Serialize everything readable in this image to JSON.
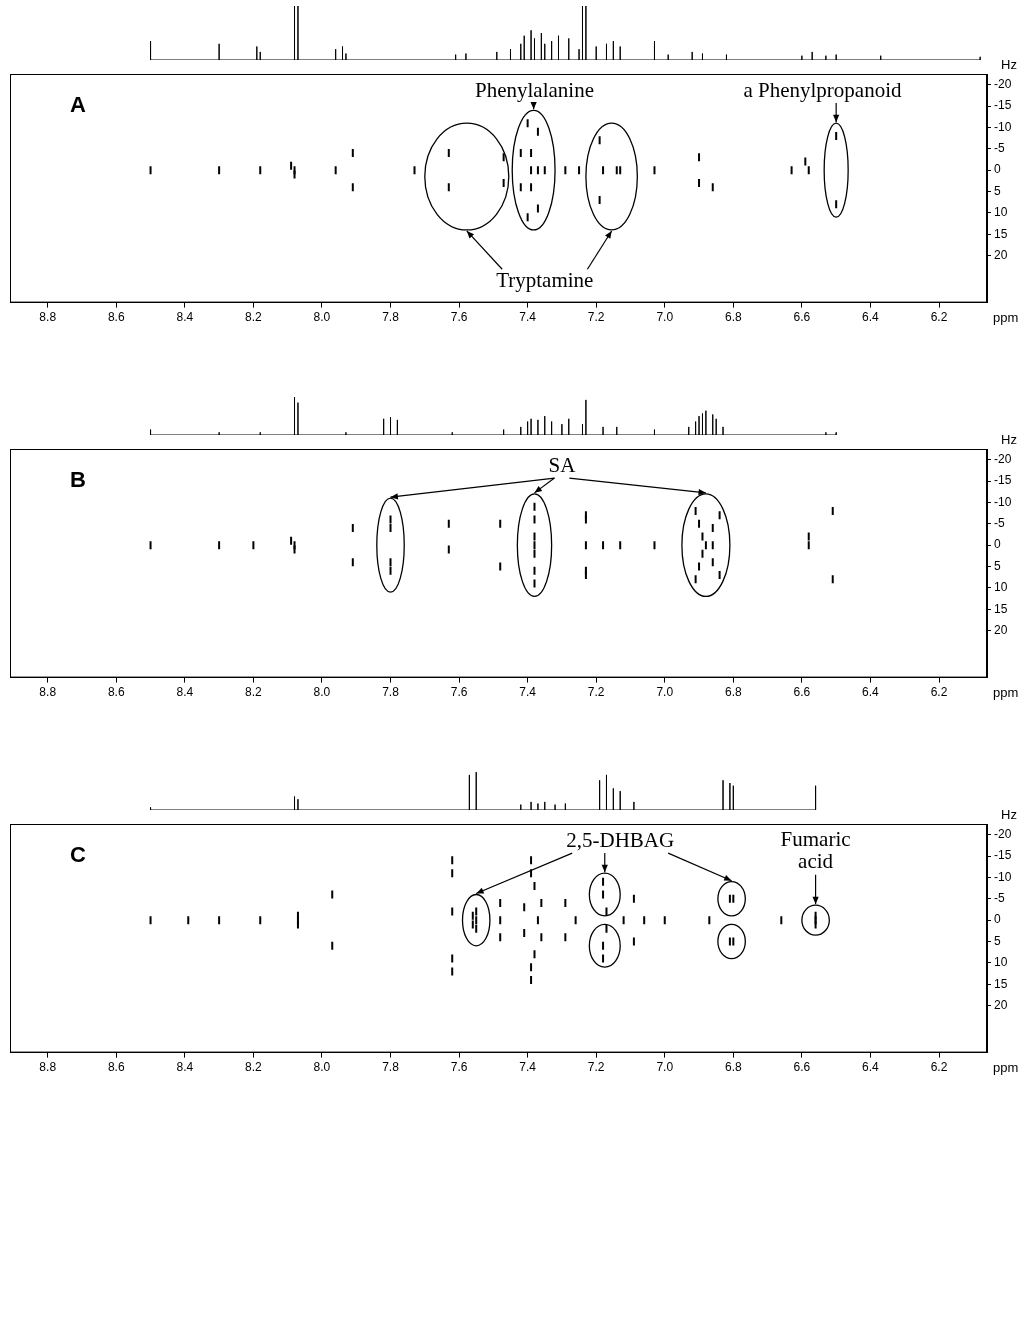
{
  "chart_data": [
    {
      "type": "scatter",
      "title": "A",
      "x_label": "ppm",
      "y_label": "Hz",
      "xlim": [
        8.91,
        6.06
      ],
      "xticks": [
        8.8,
        8.6,
        8.4,
        8.2,
        {
          "value": 8,
          "label": "8.0"
        },
        7.8,
        7.6,
        7.4,
        7.2,
        {
          "value": 7,
          "label": "7.0"
        },
        6.8,
        6.6,
        6.4,
        6.2
      ],
      "ylim": [
        31,
        -22.5
      ],
      "yticks": [
        -20,
        -15,
        -10,
        -5,
        0,
        5,
        10,
        15,
        20
      ],
      "grid": false,
      "series": [
        {
          "type": "scatter",
          "marker": "dash",
          "color": "#000000",
          "x": [
            8.5,
            8.3,
            8.18,
            8.09,
            8.08,
            8.08,
            7.96,
            7.91,
            7.91,
            7.73,
            7.63,
            7.63,
            7.47,
            7.47,
            7.4,
            7.37,
            7.42,
            7.39,
            7.39,
            7.37,
            7.35,
            7.42,
            7.39,
            7.37,
            7.4,
            7.29,
            7.25,
            7.19,
            7.18,
            7.14,
            7.13,
            7.19,
            7.03,
            6.9,
            6.9,
            6.86,
            6.63,
            6.58,
            6.59,
            6.5,
            6.5
          ],
          "values": [
            0,
            0,
            0,
            -1,
            0,
            1,
            0,
            -4,
            4,
            0,
            -4,
            4,
            -3,
            3,
            -11,
            -9,
            -4,
            -4,
            0,
            0,
            0,
            4,
            4,
            9,
            11,
            0,
            0,
            -7,
            0,
            0,
            0,
            7,
            0,
            -3,
            3,
            4,
            0,
            0,
            -2,
            -8,
            8
          ]
        }
      ],
      "projection": {
        "type": "line",
        "color": "#000000",
        "tick_labels": false,
        "ylim": [
          0,
          100
        ],
        "x": [
          8.5,
          8.3,
          8.19,
          8.18,
          8.08,
          8.07,
          7.96,
          7.94,
          7.93,
          7.61,
          7.58,
          7.49,
          7.45,
          7.42,
          7.41,
          7.39,
          7.38,
          7.36,
          7.35,
          7.33,
          7.31,
          7.28,
          7.25,
          7.24,
          7.23,
          7.2,
          7.17,
          7.15,
          7.13,
          7.03,
          6.99,
          6.92,
          6.89,
          6.82,
          6.6,
          6.57,
          6.53,
          6.5,
          6.37,
          6.08
        ],
        "values": [
          35,
          30,
          25,
          15,
          100,
          100,
          20,
          25,
          12,
          10,
          12,
          15,
          20,
          30,
          45,
          55,
          40,
          50,
          30,
          35,
          45,
          40,
          20,
          100,
          100,
          25,
          30,
          35,
          25,
          35,
          10,
          15,
          12,
          10,
          8,
          15,
          8,
          10,
          8,
          6
        ]
      },
      "annotations": [
        {
          "text": "Phenylalanine",
          "x": 7.38,
          "y": -18.5,
          "targets": [
            {
              "x": [
                7.445,
                7.32
              ],
              "y": [
                -14,
                14
              ]
            }
          ]
        },
        {
          "text": "a Phenylpropanoid",
          "x": 6.54,
          "y": -18.5,
          "targets": [
            {
              "x": [
                6.535,
                6.465
              ],
              "y": [
                -11,
                11
              ]
            }
          ]
        },
        {
          "text": "Tryptamine",
          "x": 7.35,
          "y": 26,
          "targets": [
            {
              "x": [
                7.7,
                7.455
              ],
              "y": [
                -11,
                14
              ]
            },
            {
              "x": [
                7.23,
                7.08
              ],
              "y": [
                -11,
                14
              ]
            }
          ]
        }
      ]
    },
    {
      "type": "scatter",
      "title": "B",
      "x_label": "ppm",
      "y_label": "Hz",
      "xlim": [
        8.91,
        6.06
      ],
      "xticks": [
        8.8,
        8.6,
        8.4,
        8.2,
        {
          "value": 8,
          "label": "8.0"
        },
        7.8,
        7.6,
        7.4,
        7.2,
        {
          "value": 7,
          "label": "7.0"
        },
        6.8,
        6.6,
        6.4,
        6.2
      ],
      "ylim": [
        31,
        -22.5
      ],
      "yticks": [
        -20,
        -15,
        -10,
        -5,
        0,
        5,
        10,
        15,
        20
      ],
      "grid": false,
      "series": [
        {
          "type": "scatter",
          "marker": "dash",
          "color": "#000000",
          "x": [
            8.5,
            8.3,
            8.2,
            8.09,
            8.08,
            8.08,
            7.91,
            7.91,
            7.8,
            7.8,
            7.8,
            7.8,
            7.63,
            7.63,
            7.48,
            7.48,
            7.38,
            7.38,
            7.38,
            7.38,
            7.38,
            7.38,
            7.38,
            7.23,
            7.23,
            7.23,
            7.23,
            7.23,
            7.18,
            7.13,
            7.03,
            6.91,
            6.9,
            6.89,
            6.88,
            6.89,
            6.9,
            6.91,
            6.86,
            6.86,
            6.86,
            6.84,
            6.84,
            6.58,
            6.58,
            6.51,
            6.51
          ],
          "values": [
            0,
            0,
            0,
            -1,
            0,
            1,
            -4,
            4,
            -6,
            -4,
            4,
            6,
            -5,
            1,
            -5,
            5,
            -9,
            -6,
            -2,
            0,
            2,
            6,
            9,
            -7,
            -6,
            0,
            6,
            7,
            0,
            0,
            0,
            -8,
            -5,
            -2,
            0,
            2,
            5,
            8,
            -4,
            0,
            4,
            -7,
            7,
            0,
            -2,
            -8,
            8
          ]
        }
      ],
      "projection": {
        "type": "line",
        "color": "#000000",
        "tick_labels": false,
        "ylim": [
          0,
          100
        ],
        "x": [
          8.5,
          8.3,
          8.18,
          8.08,
          8.07,
          7.93,
          7.82,
          7.8,
          7.78,
          7.62,
          7.47,
          7.42,
          7.4,
          7.39,
          7.37,
          7.35,
          7.33,
          7.3,
          7.28,
          7.24,
          7.23,
          7.18,
          7.14,
          7.03,
          6.93,
          6.91,
          6.9,
          6.89,
          6.88,
          6.86,
          6.85,
          6.83,
          6.53,
          6.5
        ],
        "values": [
          10,
          5,
          5,
          70,
          60,
          5,
          30,
          33,
          28,
          5,
          10,
          15,
          25,
          30,
          28,
          35,
          25,
          20,
          30,
          20,
          65,
          15,
          15,
          10,
          15,
          25,
          35,
          40,
          45,
          38,
          30,
          15,
          5,
          5
        ]
      },
      "annotations": [
        {
          "text": "SA",
          "x": 7.3,
          "y": -18.5,
          "targets": [
            {
              "x": [
                7.84,
                7.76
              ],
              "y": [
                -11,
                11
              ]
            },
            {
              "x": [
                7.43,
                7.33
              ],
              "y": [
                -12,
                12
              ]
            },
            {
              "x": [
                6.95,
                6.81
              ],
              "y": [
                -12,
                12
              ]
            }
          ]
        }
      ]
    },
    {
      "type": "scatter",
      "title": "C",
      "x_label": "ppm",
      "y_label": "Hz",
      "xlim": [
        8.91,
        6.06
      ],
      "xticks": [
        8.8,
        8.6,
        8.4,
        8.2,
        {
          "value": 8,
          "label": "8.0"
        },
        7.8,
        7.6,
        7.4,
        7.2,
        {
          "value": 7,
          "label": "7.0"
        },
        6.8,
        6.6,
        6.4,
        6.2
      ],
      "ylim": [
        31,
        -22.5
      ],
      "yticks": [
        -20,
        -15,
        -10,
        -5,
        0,
        5,
        10,
        15,
        20
      ],
      "grid": false,
      "series": [
        {
          "type": "scatter",
          "marker": "dash",
          "color": "#000000",
          "x": [
            8.5,
            8.39,
            8.3,
            8.18,
            8.07,
            8.07,
            8.07,
            7.97,
            7.97,
            7.62,
            7.62,
            7.62,
            7.62,
            7.62,
            7.55,
            7.55,
            7.55,
            7.56,
            7.56,
            7.48,
            7.48,
            7.48,
            7.39,
            7.39,
            7.38,
            7.36,
            7.37,
            7.36,
            7.38,
            7.39,
            7.39,
            7.41,
            7.41,
            7.29,
            7.29,
            7.26,
            7.18,
            7.18,
            7.18,
            7.18,
            7.17,
            7.17,
            7.12,
            7.09,
            7.09,
            7.06,
            7.0,
            6.87,
            6.81,
            6.8,
            6.81,
            6.8,
            6.66,
            6.56,
            6.56,
            6.56
          ],
          "values": [
            0,
            0,
            0,
            0,
            -1,
            0,
            1,
            -6,
            6,
            -14,
            -11,
            -2,
            9,
            12,
            -2,
            0,
            2,
            -1,
            1,
            -4,
            4,
            0,
            -14,
            -11,
            -8,
            -4,
            0,
            4,
            8,
            11,
            14,
            -3,
            3,
            -4,
            4,
            0,
            -9,
            -6,
            6,
            9,
            -2,
            2,
            0,
            -5,
            5,
            0,
            0,
            0,
            -5,
            -5,
            5,
            5,
            0,
            0,
            -1,
            1
          ]
        }
      ],
      "projection": {
        "type": "line",
        "color": "#000000",
        "tick_labels": false,
        "ylim": [
          0,
          100
        ],
        "x": [
          8.5,
          8.08,
          8.07,
          7.57,
          7.55,
          7.42,
          7.39,
          7.37,
          7.35,
          7.32,
          7.29,
          7.19,
          7.17,
          7.15,
          7.13,
          7.09,
          6.83,
          6.81,
          6.8,
          6.56
        ],
        "values": [
          5,
          25,
          20,
          65,
          70,
          10,
          15,
          12,
          15,
          10,
          12,
          55,
          65,
          40,
          35,
          15,
          55,
          50,
          45,
          45
        ]
      },
      "annotations": [
        {
          "text": "2,5-DHBAG",
          "x": 7.13,
          "y": -18.5,
          "targets": [
            {
              "x": [
                7.59,
                7.51
              ],
              "y": [
                -6,
                6
              ]
            },
            {
              "x": [
                7.22,
                7.13
              ],
              "y": [
                -11,
                -1
              ]
            },
            {
              "x": [
                7.22,
                7.13
              ],
              "y": [
                1,
                11
              ]
            },
            {
              "x": [
                6.845,
                6.765
              ],
              "y": [
                -9,
                -1
              ]
            },
            {
              "x": [
                6.845,
                6.765
              ],
              "y": [
                1,
                9
              ]
            }
          ]
        },
        {
          "text": "Fumaric\nacid",
          "x": 6.56,
          "y": -16,
          "targets": [
            {
              "x": [
                6.6,
                6.52
              ],
              "y": [
                -3.5,
                3.5
              ]
            }
          ]
        }
      ]
    }
  ]
}
